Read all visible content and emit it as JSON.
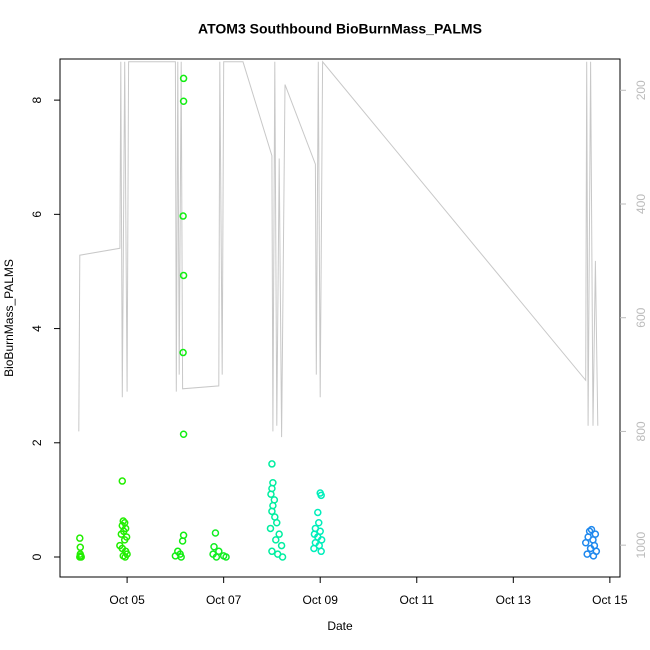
{
  "chart_data": {
    "type": "scatter",
    "title": "ATOM3 Southbound BioBurnMass_PALMS",
    "xlabel": "Date",
    "ylabel": "BioBurnMass_PALMS",
    "xlim": [
      3.61,
      15.21
    ],
    "xticks": [
      {
        "value": 5,
        "label": "Oct 05"
      },
      {
        "value": 7,
        "label": "Oct 07"
      },
      {
        "value": 9,
        "label": "Oct 09"
      },
      {
        "value": 11,
        "label": "Oct 11"
      },
      {
        "value": 13,
        "label": "Oct 13"
      },
      {
        "value": 15,
        "label": "Oct 15"
      }
    ],
    "ylim": [
      -0.35,
      8.72
    ],
    "yticks": [
      0,
      2,
      4,
      6,
      8
    ],
    "y2lim": [
      1056,
      145
    ],
    "y2ticks": [
      200,
      400,
      600,
      800,
      1000
    ],
    "series": [
      {
        "color": "#22ee00",
        "x": [
          4.02,
          4.03,
          4.03,
          4.04,
          4.02,
          4.05
        ],
        "values": [
          0.33,
          0.17,
          0.05,
          0.02,
          0,
          0
        ]
      },
      {
        "color": "#22ee00",
        "x": [
          4.9,
          4.92,
          4.95,
          4.9,
          4.97,
          4.93,
          4.88,
          4.99,
          4.95,
          4.85,
          4.9,
          4.97,
          5.0,
          4.92,
          4.96
        ],
        "values": [
          1.33,
          0.63,
          0.6,
          0.55,
          0.5,
          0.45,
          0.4,
          0.35,
          0.3,
          0.2,
          0.15,
          0.1,
          0.05,
          0.02,
          0
        ]
      },
      {
        "color": "#11ee11",
        "x": [
          6.17,
          6.17,
          6.16,
          6.17,
          6.16,
          6.17,
          6.17,
          6.15,
          6.05,
          6.1,
          6.0,
          6.12
        ],
        "values": [
          8.38,
          7.98,
          5.97,
          4.93,
          3.58,
          2.15,
          0.38,
          0.28,
          0.1,
          0.05,
          0.02,
          0
        ]
      },
      {
        "color": "#11ee22",
        "x": [
          6.83,
          6.8,
          6.9,
          6.78,
          7.0,
          6.85,
          7.05
        ],
        "values": [
          0.42,
          0.18,
          0.1,
          0.05,
          0.02,
          0,
          0
        ]
      },
      {
        "color": "#00eea0",
        "x": [
          8.0,
          8.02,
          8.0,
          7.98,
          8.05,
          8.02,
          8.0,
          8.06,
          8.1,
          7.97,
          8.15,
          8.08,
          8.2,
          8.0,
          8.12,
          8.22
        ],
        "values": [
          1.63,
          1.3,
          1.2,
          1.1,
          1.0,
          0.9,
          0.8,
          0.7,
          0.6,
          0.5,
          0.4,
          0.3,
          0.2,
          0.1,
          0.05,
          0
        ]
      },
      {
        "color": "#00eebb",
        "x": [
          9.0,
          9.02,
          8.95,
          8.97,
          8.9,
          9.0,
          8.88,
          8.95,
          9.03,
          8.9,
          8.98,
          8.87,
          9.02
        ],
        "values": [
          1.12,
          1.08,
          0.78,
          0.6,
          0.5,
          0.45,
          0.4,
          0.35,
          0.3,
          0.25,
          0.2,
          0.15,
          0.1
        ]
      },
      {
        "color": "#1e88ee",
        "x": [
          14.62,
          14.58,
          14.7,
          14.55,
          14.65,
          14.5,
          14.68,
          14.6,
          14.72,
          14.53,
          14.66
        ],
        "values": [
          0.48,
          0.45,
          0.4,
          0.35,
          0.3,
          0.25,
          0.2,
          0.15,
          0.1,
          0.05,
          0.02
        ]
      },
      {
        "type": "line",
        "axis": "y2",
        "color": "#c8c8c8",
        "x": [
          4.0,
          4.02,
          4.85,
          4.87,
          4.9,
          4.95,
          5.0,
          5.03,
          6.0,
          6.02,
          6.05,
          6.08,
          6.12,
          6.15,
          6.9,
          6.92,
          6.97,
          7.0,
          7.4,
          8.0,
          8.02,
          8.06,
          8.1,
          8.15,
          8.2,
          8.27,
          8.9,
          8.92,
          8.96,
          9.0,
          9.05,
          14.5,
          14.52,
          14.55,
          14.6,
          14.65,
          14.7,
          14.75
        ],
        "values": [
          800,
          490,
          478,
          150,
          740,
          150,
          730,
          150,
          150,
          730,
          150,
          700,
          150,
          725,
          720,
          150,
          700,
          150,
          150,
          315,
          800,
          150,
          790,
          320,
          810,
          190,
          330,
          700,
          150,
          740,
          150,
          710,
          150,
          790,
          150,
          790,
          500,
          790
        ]
      }
    ]
  }
}
